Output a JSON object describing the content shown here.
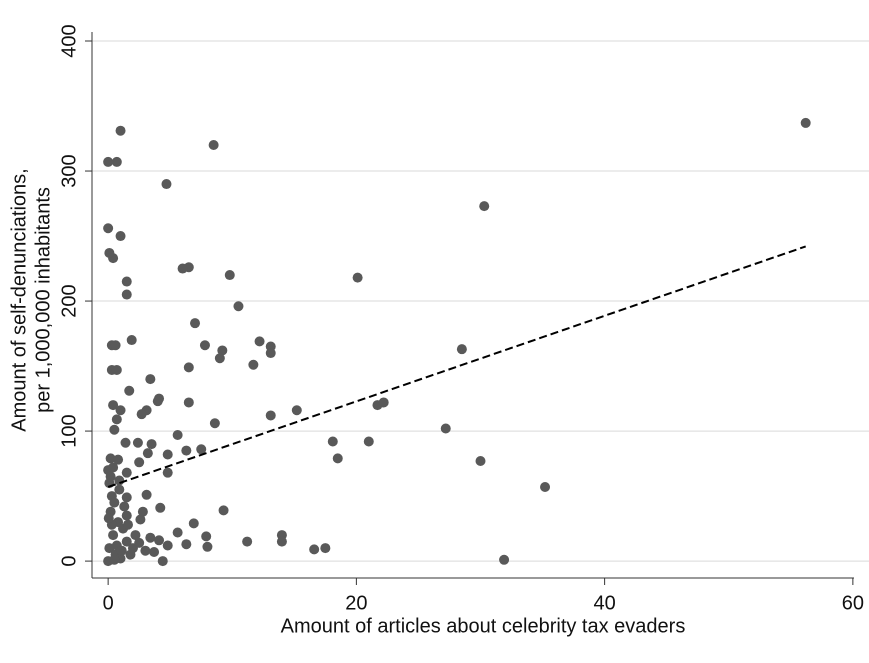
{
  "chart_data": {
    "type": "scatter",
    "xlabel": "Amount of articles about celebrity tax evaders",
    "ylabel": [
      "Amount of self-denunciations,",
      "per 1,000,000 inhabitants"
    ],
    "xlim": [
      -1.3,
      61.3
    ],
    "ylim": [
      -13,
      430
    ],
    "xticks": [
      0,
      20,
      40,
      60
    ],
    "yticks": [
      0,
      100,
      200,
      300,
      400
    ],
    "grid": true,
    "series": [
      {
        "color": "#595959",
        "x": [
          56.2,
          30.3,
          35.2,
          31.9,
          30,
          28.5,
          27.2,
          20.1,
          21,
          21.7,
          22.2,
          18.1,
          18.5,
          15.2,
          17.5,
          16.6,
          14,
          14,
          13.1,
          13.1,
          13.1,
          12.2,
          11.7,
          11.2,
          10.5,
          9.8,
          9.3,
          9.2,
          9.0,
          8.6,
          8.5,
          7.8,
          8.0,
          7.9,
          7.5,
          7.0,
          6.9,
          6.5,
          6.0,
          6.5,
          6.5,
          6.3,
          6.3,
          5.6,
          5.6,
          4.7,
          4.8,
          4.8,
          4.8,
          4.4,
          4.1,
          4.0,
          4.2,
          4.1,
          3.5,
          3.4,
          3.1,
          2.7,
          3.2,
          3.1,
          2.8,
          2.6,
          3.4,
          3.7,
          2.4,
          2.5,
          1.9,
          1.7,
          1.5,
          1.5,
          1.4,
          1.5,
          1.5,
          1.5,
          1.0,
          1.0,
          1.0,
          0.7,
          0.5,
          0.7,
          0.4,
          0.1,
          0,
          0,
          0.3,
          0.6,
          0.3,
          0.7,
          0.4,
          0.2,
          0.8,
          0,
          0.1,
          0.3,
          0.5,
          0.2,
          0.8,
          1.2,
          0.4,
          1.5,
          0.1,
          0.6,
          1,
          0,
          2,
          2.5,
          1.8,
          0.3,
          0.9,
          1.3,
          0.2,
          0.7,
          1.1,
          0.05,
          0.5,
          2.2,
          3,
          1.6,
          0.4,
          0.9
        ],
        "values": [
          337,
          273,
          57,
          1,
          77,
          163,
          102,
          218,
          92,
          120,
          122,
          92,
          79,
          116,
          10,
          9,
          20,
          15,
          112,
          165,
          160,
          169,
          151,
          15,
          196,
          220,
          39,
          162,
          156,
          106,
          320,
          166,
          11,
          19,
          86,
          183,
          29,
          226,
          225,
          149,
          122,
          85,
          13,
          97,
          22,
          290,
          82,
          68,
          12,
          0,
          125,
          123,
          41,
          16,
          90,
          140,
          116,
          113,
          83,
          51,
          38,
          32,
          18,
          7,
          91,
          76,
          170,
          131,
          215,
          205,
          91,
          68,
          49,
          35,
          331,
          250,
          116,
          109,
          101,
          307,
          233,
          237,
          256,
          307,
          166,
          166,
          147,
          147,
          120,
          79,
          78,
          70,
          60,
          50,
          45,
          38,
          30,
          25,
          20,
          15,
          10,
          5,
          2,
          0,
          10,
          14,
          5,
          28,
          55,
          42,
          65,
          12,
          8,
          33,
          1,
          20,
          8,
          28,
          72,
          62
        ]
      }
    ],
    "fit_line": {
      "color": "#000000",
      "x": [
        0,
        56.2
      ],
      "values": [
        57,
        242
      ]
    }
  }
}
